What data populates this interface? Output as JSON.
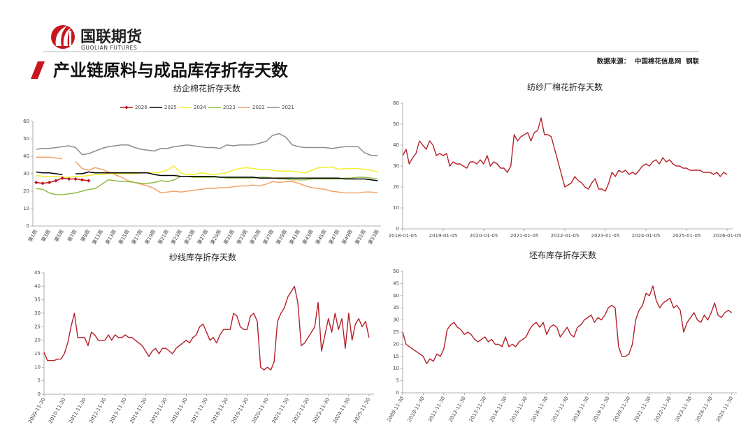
{
  "header": {
    "logo_text": "国联期货",
    "logo_subtext": "GUOLIAN FUTURES",
    "title": "产业链原料与成品库存折存天数",
    "source": "数据来源：  中国棉花信息网  钢联"
  },
  "chart_data": [
    {
      "type": "line",
      "title": "纺企棉花折存天数",
      "categories": [
        "第1周",
        null,
        "第3周",
        null,
        "第5周",
        null,
        "第7周",
        null,
        "第9周",
        null,
        "第11周",
        null,
        "第13周",
        null,
        "第15周",
        null,
        "第17周",
        null,
        "第19周",
        null,
        "第21周",
        null,
        "第23周",
        null,
        "第25周",
        null,
        "第27周",
        null,
        "第29周",
        null,
        "第31周",
        null,
        "第33周",
        null,
        "第35周",
        null,
        "第37周",
        null,
        "第39周",
        null,
        "第41周",
        null,
        "第43周",
        null,
        "第45周",
        null,
        "第47周",
        null,
        "第49周",
        null,
        "第51周",
        null,
        "第53周"
      ],
      "ylim": [
        0,
        60
      ],
      "yticks": [
        0,
        10,
        20,
        30,
        40,
        50,
        60
      ],
      "legend": "top",
      "series": [
        {
          "name": "2026",
          "color": "#c0141c",
          "marker": "diamond",
          "values": [
            25,
            24.5,
            25,
            26,
            27.5,
            27,
            27,
            26.5,
            26,
            null,
            null,
            null,
            null,
            null,
            null,
            null,
            null,
            null,
            null,
            null,
            null,
            null,
            null,
            null,
            null,
            null,
            null,
            null,
            null,
            null,
            null,
            null,
            null,
            null,
            null,
            null,
            null,
            null,
            null,
            null,
            null,
            null,
            null,
            null,
            null,
            null,
            null,
            null,
            null,
            null,
            null,
            null,
            null
          ]
        },
        {
          "name": "2025",
          "color": "#000000",
          "values": [
            31,
            30.5,
            30.5,
            30,
            29.5,
            null,
            30,
            30,
            31,
            30.5,
            30.5,
            30.5,
            30.5,
            30.5,
            30.5,
            30.5,
            30.5,
            30.5,
            29.5,
            29,
            29,
            29,
            28.5,
            28.5,
            28.5,
            28.5,
            28.5,
            28.5,
            28,
            28,
            28,
            28,
            28,
            28,
            27.5,
            27.5,
            27.5,
            27.5,
            27.5,
            27.5,
            27.5,
            27.5,
            27.5,
            27.5,
            27.5,
            27.5,
            27.5,
            27,
            27,
            27,
            27,
            26.5,
            26
          ]
        },
        {
          "name": "2024",
          "color": "#f2ee2e",
          "values": [
            29,
            28.5,
            28.5,
            28.5,
            28,
            28,
            28.5,
            28.5,
            29,
            29.5,
            29.5,
            30,
            30,
            30,
            30,
            30,
            30.5,
            30.5,
            30.5,
            31,
            32,
            34.5,
            30.5,
            29.5,
            29.5,
            30.5,
            30,
            29.5,
            30,
            30.5,
            32,
            33,
            33.5,
            33,
            32.5,
            32.5,
            32,
            31.5,
            31.5,
            31.5,
            31,
            30.5,
            32,
            33.5,
            33.5,
            34,
            32.5,
            33,
            33,
            33,
            32.5,
            32,
            31
          ]
        },
        {
          "name": "2023",
          "color": "#8fbc45",
          "values": [
            21.5,
            21,
            19,
            18,
            18,
            18.5,
            19,
            20,
            21,
            21.5,
            24,
            26.5,
            26,
            25.5,
            25.5,
            25,
            24.5,
            24.5,
            25,
            26,
            25.5,
            26.5,
            28.5,
            28.5,
            28,
            28,
            28,
            28,
            28,
            27.5,
            27.5,
            27.5,
            27.5,
            27.5,
            28,
            28,
            27.5,
            27,
            27,
            26.5,
            26.5,
            26.5,
            27,
            27,
            27,
            27,
            27,
            27.5,
            27.5,
            28,
            28,
            27.5,
            27
          ]
        },
        {
          "name": "2022",
          "color": "#f0a46a",
          "values": [
            39.5,
            39.5,
            39.5,
            39,
            38.5,
            null,
            37,
            33,
            32,
            33.5,
            32.5,
            31,
            29.5,
            28,
            26,
            25,
            24,
            23,
            21.5,
            19,
            19.5,
            20,
            19.5,
            20,
            20.5,
            21,
            21.5,
            21.5,
            22,
            22,
            22.5,
            23,
            23,
            23.5,
            23,
            24,
            25.5,
            25,
            25.5,
            25.5,
            24.5,
            23,
            22,
            21.5,
            21,
            20,
            19.5,
            19,
            19,
            19,
            19.5,
            19.5,
            19
          ]
        },
        {
          "name": "2021",
          "color": "#8c8c8c",
          "values": [
            44,
            44.5,
            44.5,
            45,
            45.5,
            46,
            45,
            41,
            41.5,
            43,
            44.5,
            45.5,
            46,
            46.5,
            46.5,
            45,
            44,
            43.5,
            43,
            44.5,
            44.5,
            45.5,
            46,
            46.5,
            46,
            45.5,
            45,
            45,
            44.5,
            46.5,
            46,
            46.5,
            46.5,
            46.5,
            47.5,
            48.5,
            52,
            53,
            51,
            46.5,
            45.5,
            45,
            45,
            45,
            45,
            44.5,
            45,
            45.5,
            45.5,
            45.5,
            42,
            40.5,
            40.5
          ]
        }
      ]
    },
    {
      "type": "line",
      "title": "纺纱厂棉花折存天数",
      "color": "#b5202a",
      "x": [
        "2018-01-05",
        "2018-02-05",
        "2018-03-05",
        "2018-04-05",
        "2018-05-05",
        "2018-06-05",
        "2018-07-05",
        "2018-08-05",
        "2018-09-05",
        "2018-10-05",
        "2018-11-05",
        "2018-12-05",
        "2019-01-05",
        "2019-02-05",
        "2019-03-05",
        "2019-04-05",
        "2019-05-05",
        "2019-06-05",
        "2019-07-05",
        "2019-08-05",
        "2019-09-05",
        "2019-10-05",
        "2019-11-05",
        "2019-12-05",
        "2020-01-05",
        "2020-02-05",
        "2020-03-05",
        "2020-04-05",
        "2020-05-05",
        "2020-06-05",
        "2020-07-05",
        "2020-08-05",
        "2020-09-05",
        "2020-10-05",
        "2020-11-05",
        "2020-12-05",
        "2021-01-05",
        "2021-02-05",
        "2021-03-05",
        "2021-04-05",
        "2021-05-05",
        "2021-06-05",
        "2021-07-05",
        "2021-08-05",
        "2021-09-05",
        "2021-10-05",
        "2021-11-05",
        "2021-12-05",
        "2022-01-05",
        "2022-02-05",
        "2022-03-05",
        "2022-04-05",
        "2022-05-05",
        "2022-06-05",
        "2022-07-05",
        "2022-08-05",
        "2022-09-05",
        "2022-10-05",
        "2022-11-05",
        "2022-12-05",
        "2023-01-05",
        "2023-02-05",
        "2023-03-05",
        "2023-04-05",
        "2023-05-05",
        "2023-06-05",
        "2023-07-05",
        "2023-08-05",
        "2023-09-05",
        "2023-10-05",
        "2023-11-05",
        "2023-12-05",
        "2024-01-05",
        "2024-02-05",
        "2024-03-05",
        "2024-04-05",
        "2024-05-05",
        "2024-06-05",
        "2024-07-05",
        "2024-08-05",
        "2024-09-05",
        "2024-10-05",
        "2024-11-05",
        "2024-12-05",
        "2025-01-05",
        "2025-02-05",
        "2025-03-05",
        "2025-04-05",
        "2025-05-05",
        "2025-06-05",
        "2025-07-05",
        "2025-08-05",
        "2025-09-05",
        "2025-10-05",
        "2025-11-05",
        "2025-12-05",
        "2026-01-05"
      ],
      "values": [
        35,
        38,
        31,
        34,
        36,
        42,
        40,
        38,
        42,
        40,
        35,
        36,
        35,
        36,
        30,
        32,
        31,
        31,
        30,
        29,
        32,
        32,
        31,
        33,
        31,
        35,
        30,
        32,
        31,
        29,
        29,
        27,
        30,
        45,
        42,
        44,
        45,
        46,
        42,
        46,
        47,
        53,
        45,
        45,
        44,
        38,
        32,
        26,
        20,
        21,
        22,
        25,
        23,
        22,
        20,
        19,
        22,
        24,
        19,
        19,
        18,
        22,
        27,
        25,
        28,
        27,
        28,
        26,
        27,
        26,
        28,
        30,
        31,
        30,
        32,
        33,
        31,
        34,
        32,
        33,
        31,
        30,
        30,
        29,
        29,
        28,
        28,
        28,
        28,
        27,
        27,
        27,
        26,
        27,
        25,
        27,
        26
      ],
      "xlim": [
        "2018-01-05",
        "2026-02-24"
      ],
      "xticks": [
        "2018-01-05",
        "2019-01-05",
        "2020-01-05",
        "2021-01-05",
        "2022-01-05",
        "2023-01-05",
        "2024-01-05",
        "2025-01-05",
        "2026-01-05"
      ],
      "ylim": [
        0,
        60
      ],
      "yticks": [
        0,
        10,
        20,
        30,
        40,
        50,
        60
      ]
    },
    {
      "type": "line",
      "title": "纱线库存折存天数",
      "color": "#b5202a",
      "x": [
        "2009-11-30",
        "2010-01-30",
        "2010-03-30",
        "2010-05-30",
        "2010-07-30",
        "2010-09-30",
        "2010-11-30",
        "2011-01-30",
        "2011-03-30",
        "2011-05-30",
        "2011-07-30",
        "2011-09-30",
        "2011-11-30",
        "2012-01-30",
        "2012-03-30",
        "2012-05-30",
        "2012-07-30",
        "2012-09-30",
        "2012-11-30",
        "2013-01-30",
        "2013-03-30",
        "2013-05-30",
        "2013-07-30",
        "2013-09-30",
        "2013-11-30",
        "2014-01-30",
        "2014-03-30",
        "2014-05-30",
        "2014-07-30",
        "2014-09-30",
        "2014-11-30",
        "2015-01-30",
        "2015-03-30",
        "2015-05-30",
        "2015-07-30",
        "2015-09-30",
        "2015-11-30",
        "2016-01-30",
        "2016-03-30",
        "2016-05-30",
        "2016-07-30",
        "2016-09-30",
        "2016-11-30",
        "2017-01-30",
        "2017-03-30",
        "2017-05-30",
        "2017-07-30",
        "2017-09-30",
        "2017-11-30",
        "2018-01-30",
        "2018-03-30",
        "2018-05-30",
        "2018-07-30",
        "2018-09-30",
        "2018-11-30",
        "2019-01-30",
        "2019-03-30",
        "2019-05-30",
        "2019-07-30",
        "2019-09-30",
        "2019-11-30",
        "2020-01-30",
        "2020-03-30",
        "2020-05-30",
        "2020-07-30",
        "2020-09-30",
        "2020-11-30",
        "2021-01-30",
        "2021-03-30",
        "2021-05-30",
        "2021-07-30",
        "2021-09-30",
        "2021-11-30",
        "2022-01-30",
        "2022-03-30",
        "2022-05-30",
        "2022-07-30",
        "2022-09-30",
        "2022-11-30",
        "2023-01-30",
        "2023-03-30",
        "2023-05-30",
        "2023-07-30",
        "2023-09-30",
        "2023-11-30",
        "2024-01-30",
        "2024-03-30",
        "2024-05-30",
        "2024-07-30",
        "2024-09-30",
        "2024-11-30",
        "2025-01-30",
        "2025-03-30",
        "2025-05-30",
        "2025-07-30",
        "2025-09-30",
        "2025-11-30"
      ],
      "values": [
        15.5,
        12.5,
        12.5,
        12.5,
        13,
        13,
        15,
        19,
        25,
        30,
        21,
        21,
        21,
        18,
        23,
        22,
        20,
        20,
        20,
        22,
        20,
        22,
        21,
        21,
        22,
        21,
        21,
        20,
        19,
        18,
        16,
        14,
        16,
        17,
        15,
        17,
        17,
        16,
        15,
        17,
        18,
        19,
        20,
        19,
        21,
        22,
        25,
        26,
        23,
        20,
        21,
        19,
        22,
        24,
        24,
        24,
        30,
        29,
        25,
        24,
        24,
        29,
        30,
        27,
        10,
        9,
        10,
        9,
        12,
        27,
        30,
        32,
        36,
        38,
        40,
        34,
        18,
        19,
        21,
        23,
        25,
        34,
        16,
        22,
        28,
        23,
        30,
        24,
        28,
        17,
        30,
        20,
        26,
        28,
        25,
        27,
        21
      ],
      "xlim": [
        "2009-11-30",
        "2026-02-28"
      ],
      "xticks": [
        "2009-11-30",
        "2010-11-30",
        "2011-11-30",
        "2012-11-30",
        "2013-11-30",
        "2014-11-30",
        "2015-11-30",
        "2016-11-30",
        "2017-11-30",
        "2018-11-30",
        "2019-11-30",
        "2020-11-30",
        "2021-11-30",
        "2022-11-30",
        "2023-11-30",
        "2024-11-30",
        "2025-11-30"
      ],
      "ylim": [
        0,
        45
      ],
      "yticks": [
        0,
        5,
        10,
        15,
        20,
        25,
        30,
        35,
        40,
        45
      ]
    },
    {
      "type": "line",
      "title": "坯布库存折存天数",
      "color": "#b5202a",
      "x": [
        "2009-11-30",
        "2010-01-30",
        "2010-03-30",
        "2010-05-30",
        "2010-07-30",
        "2010-09-30",
        "2010-11-30",
        "2011-01-30",
        "2011-03-30",
        "2011-05-30",
        "2011-07-30",
        "2011-09-30",
        "2011-11-30",
        "2012-01-30",
        "2012-03-30",
        "2012-05-30",
        "2012-07-30",
        "2012-09-30",
        "2012-11-30",
        "2013-01-30",
        "2013-03-30",
        "2013-05-30",
        "2013-07-30",
        "2013-09-30",
        "2013-11-30",
        "2014-01-30",
        "2014-03-30",
        "2014-05-30",
        "2014-07-30",
        "2014-09-30",
        "2014-11-30",
        "2015-01-30",
        "2015-03-30",
        "2015-05-30",
        "2015-07-30",
        "2015-09-30",
        "2015-11-30",
        "2016-01-30",
        "2016-03-30",
        "2016-05-30",
        "2016-07-30",
        "2016-09-30",
        "2016-11-30",
        "2017-01-30",
        "2017-03-30",
        "2017-05-30",
        "2017-07-30",
        "2017-09-30",
        "2017-11-30",
        "2018-01-30",
        "2018-03-30",
        "2018-05-30",
        "2018-07-30",
        "2018-09-30",
        "2018-11-30",
        "2019-01-30",
        "2019-03-30",
        "2019-05-30",
        "2019-07-30",
        "2019-09-30",
        "2019-11-30",
        "2020-01-30",
        "2020-03-30",
        "2020-05-30",
        "2020-07-30",
        "2020-09-30",
        "2020-11-30",
        "2021-01-30",
        "2021-03-30",
        "2021-05-30",
        "2021-07-30",
        "2021-09-30",
        "2021-11-30",
        "2022-01-30",
        "2022-03-30",
        "2022-05-30",
        "2022-07-30",
        "2022-09-30",
        "2022-11-30",
        "2023-01-30",
        "2023-03-30",
        "2023-05-30",
        "2023-07-30",
        "2023-09-30",
        "2023-11-30",
        "2024-01-30",
        "2024-03-30",
        "2024-05-30",
        "2024-07-30",
        "2024-09-30",
        "2024-11-30",
        "2025-01-30",
        "2025-03-30",
        "2025-05-30",
        "2025-07-30",
        "2025-09-30",
        "2025-11-30"
      ],
      "values": [
        25,
        20,
        19,
        18,
        17,
        16,
        15,
        12,
        14,
        13,
        16,
        15,
        18,
        26,
        28,
        29,
        27,
        26,
        24,
        25,
        24,
        22,
        21,
        22,
        23,
        21,
        22,
        20,
        20,
        19,
        23,
        19,
        20,
        19,
        21,
        22,
        23,
        26,
        28,
        29,
        27,
        29,
        24,
        27,
        28,
        27,
        23,
        25,
        27,
        24,
        23,
        27,
        28,
        30,
        31,
        32,
        29,
        31,
        30,
        32,
        35,
        36,
        35,
        19,
        15,
        15,
        16,
        20,
        30,
        34,
        36,
        41,
        40,
        44,
        38,
        35,
        37,
        38,
        39,
        35,
        36,
        34,
        25,
        29,
        31,
        33,
        30,
        29,
        32,
        30,
        33,
        37,
        32,
        31,
        33,
        34,
        33
      ],
      "xlim": [
        "2009-11-30",
        "2026-02-28"
      ],
      "xticks": [
        "2009-11-30",
        "2010-11-30",
        "2011-11-30",
        "2012-11-30",
        "2013-11-30",
        "2014-11-30",
        "2015-11-30",
        "2016-11-30",
        "2017-11-30",
        "2018-11-30",
        "2019-11-30",
        "2020-11-30",
        "2021-11-30",
        "2022-11-30",
        "2023-11-30",
        "2024-11-30",
        "2025-11-30"
      ],
      "ylim": [
        0,
        50
      ],
      "yticks": [
        0,
        5,
        10,
        15,
        20,
        25,
        30,
        35,
        40,
        45,
        50
      ]
    }
  ]
}
